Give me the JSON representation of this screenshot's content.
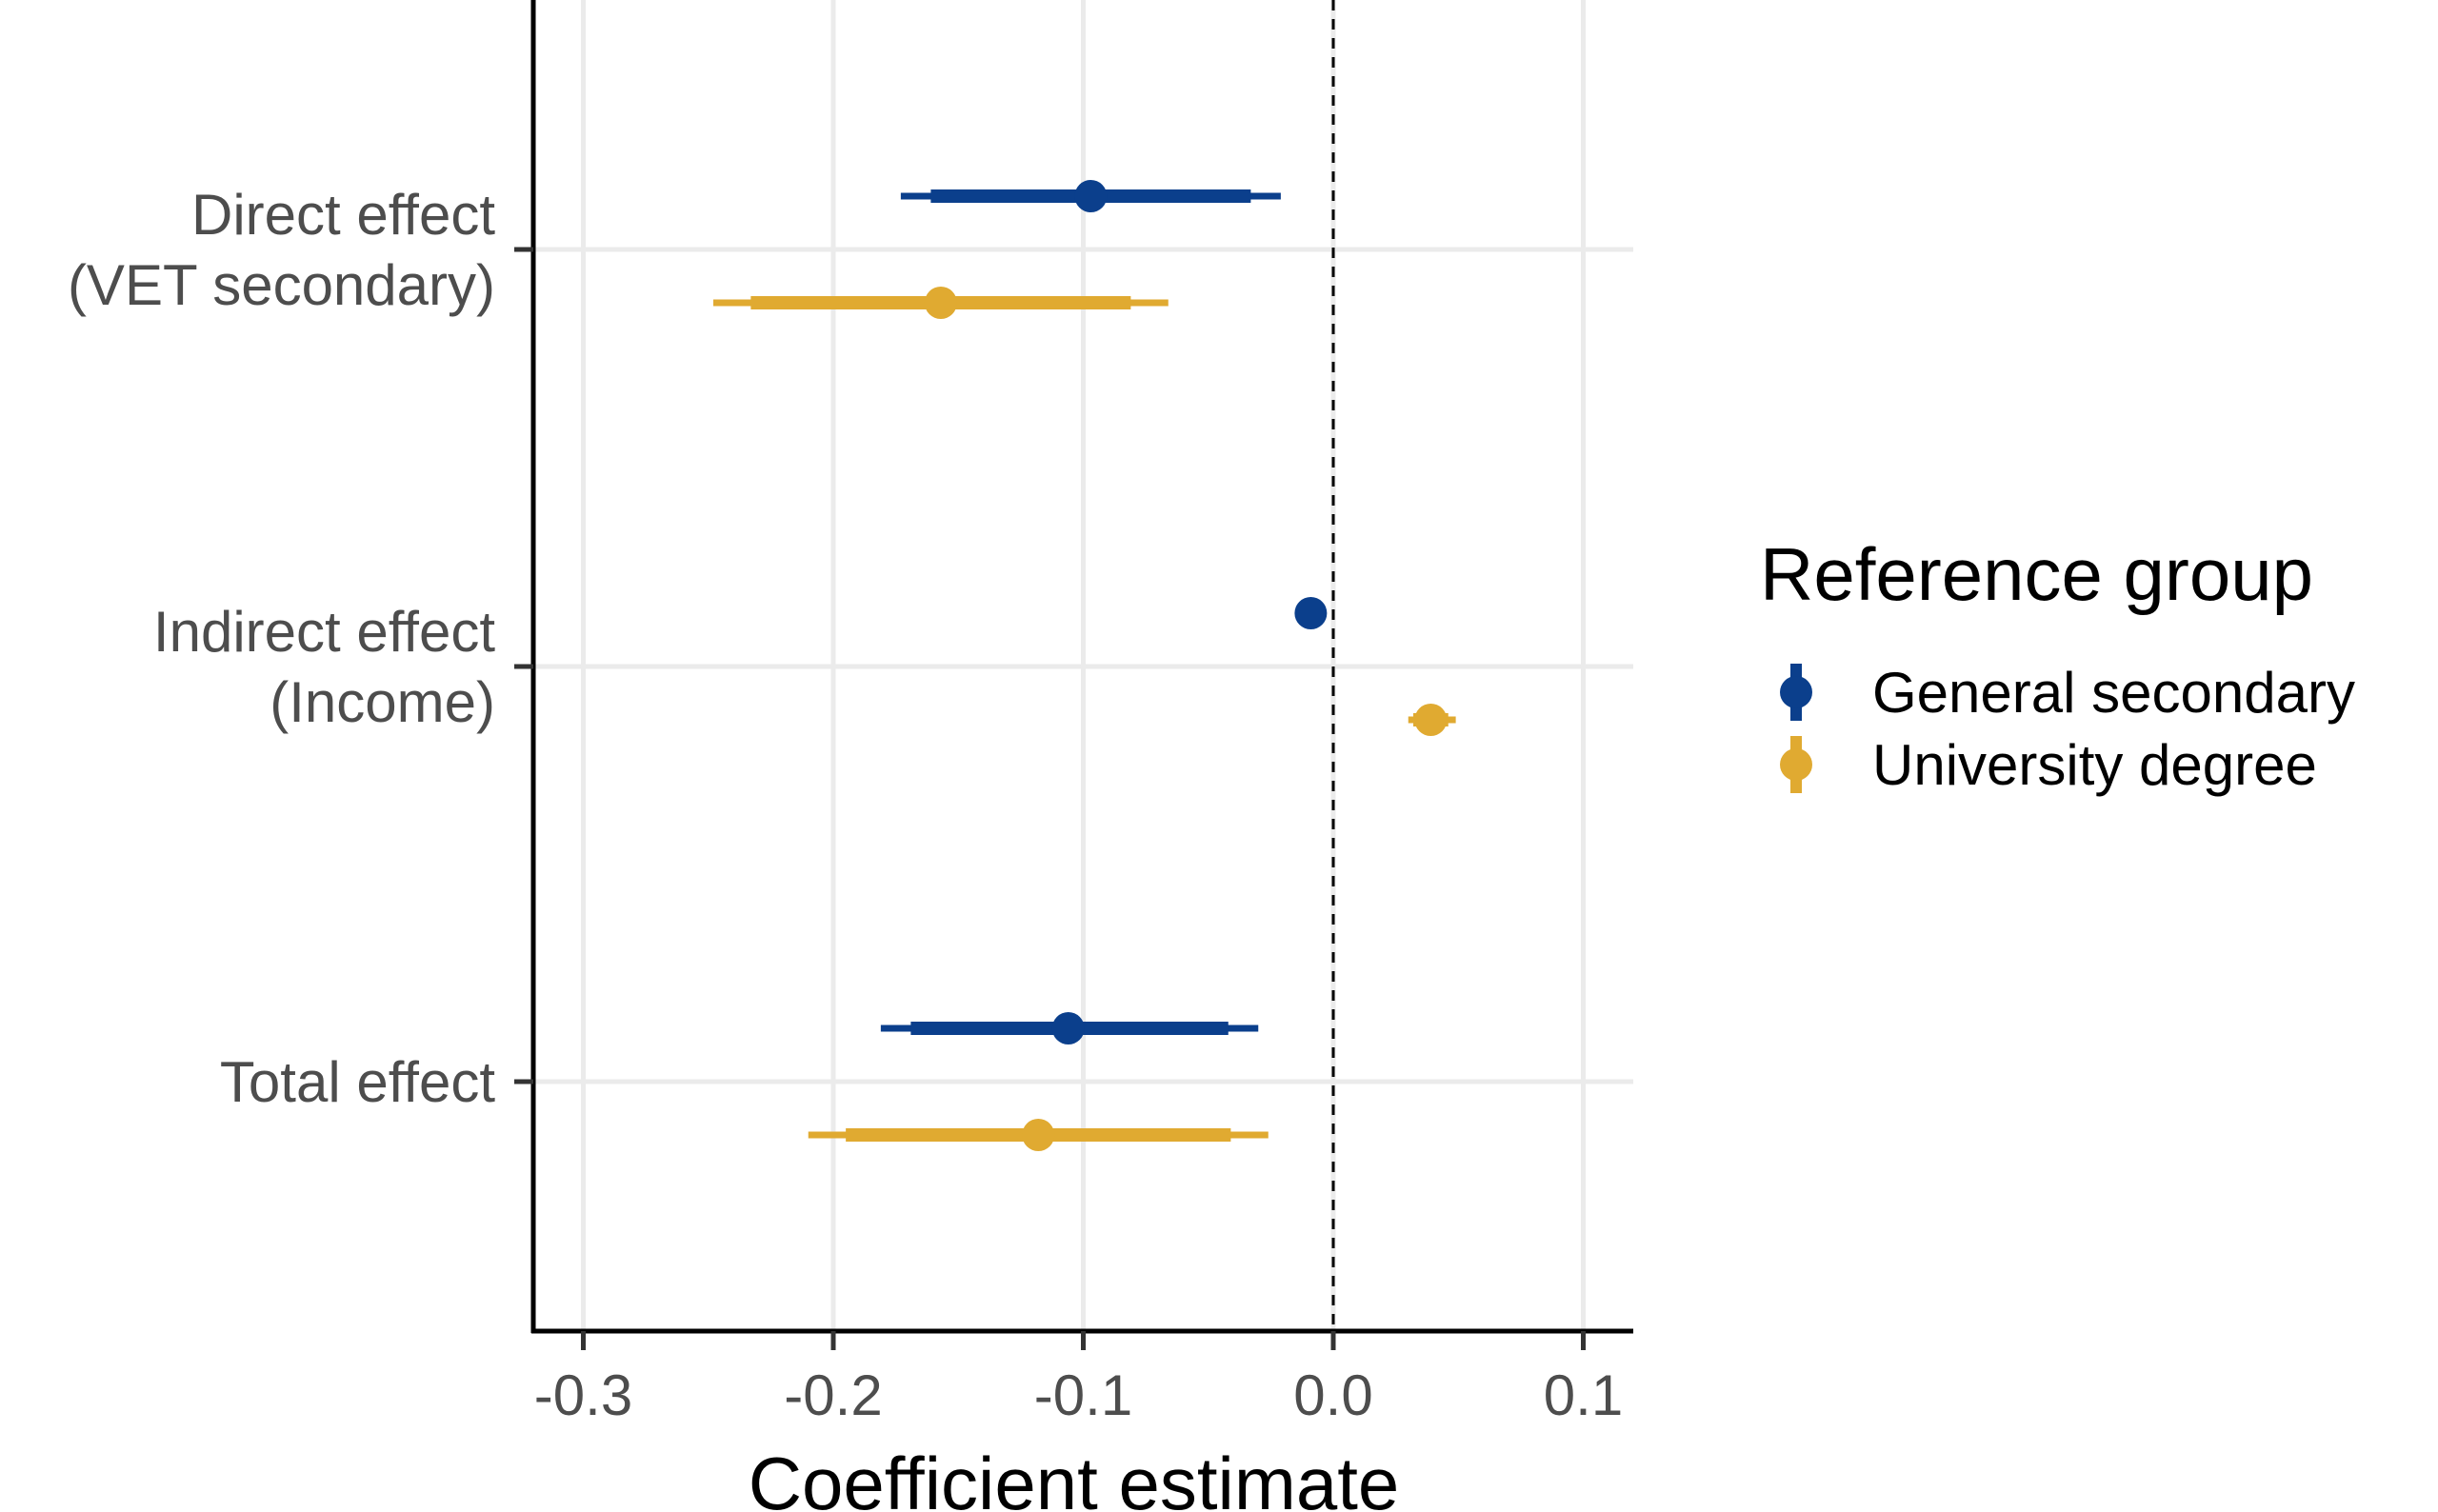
{
  "chart_data": {
    "type": "forest",
    "title": "",
    "xlabel": "Coefficient estimate",
    "ylabel": "",
    "xlim": [
      -0.32,
      0.12
    ],
    "xticks": [
      -0.3,
      -0.2,
      -0.1,
      0.0,
      0.1
    ],
    "xtick_labels": [
      "-0.3",
      "-0.2",
      "-0.1",
      "0.0",
      "0.1"
    ],
    "reference_line": 0.0,
    "grid": true,
    "categories": [
      {
        "key": "direct",
        "lines": [
          "Direct effect",
          "(VET secondary)"
        ]
      },
      {
        "key": "indirect",
        "lines": [
          "Indirect effect",
          "(Income)"
        ]
      },
      {
        "key": "total",
        "lines": [
          "Total effect"
        ]
      }
    ],
    "legend": {
      "title": "Reference group",
      "position": "right"
    },
    "series": [
      {
        "name": "General secondary",
        "color": "#0b3f8c",
        "estimates": [
          -0.097,
          -0.009,
          -0.106
        ],
        "ci_inner": [
          [
            -0.161,
            -0.033
          ],
          [
            -0.011,
            -0.007
          ],
          [
            -0.169,
            -0.042
          ]
        ],
        "ci_outer": [
          [
            -0.173,
            -0.021
          ],
          [
            -0.012,
            -0.006
          ],
          [
            -0.181,
            -0.03
          ]
        ]
      },
      {
        "name": "University degree",
        "color": "#e0aa31",
        "estimates": [
          -0.157,
          0.039,
          -0.118
        ],
        "ci_inner": [
          [
            -0.233,
            -0.081
          ],
          [
            0.032,
            0.046
          ],
          [
            -0.195,
            -0.041
          ]
        ],
        "ci_outer": [
          [
            -0.248,
            -0.066
          ],
          [
            0.03,
            0.049
          ],
          [
            -0.21,
            -0.026
          ]
        ]
      }
    ]
  }
}
